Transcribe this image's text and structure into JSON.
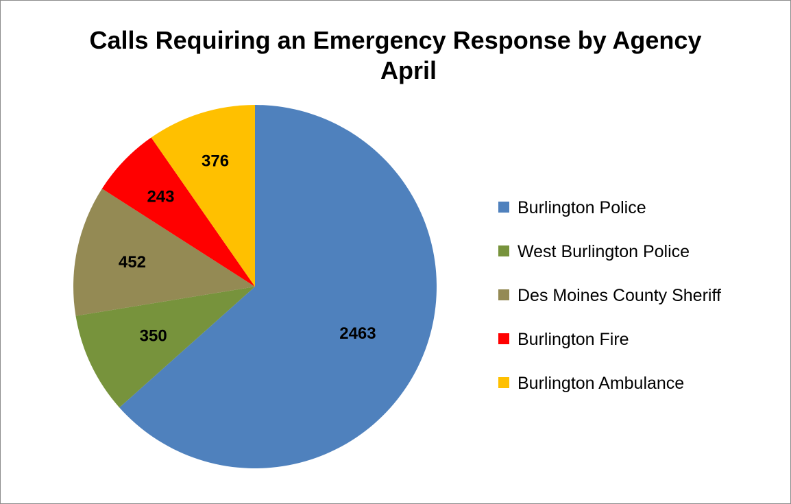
{
  "chart_data": {
    "type": "pie",
    "title_lines": [
      "Calls Requiring an Emergency Response by Agency",
      "April"
    ],
    "categories": [
      "Burlington Police",
      "West Burlington Police",
      "Des Moines County Sheriff",
      "Burlington Fire",
      "Burlington Ambulance"
    ],
    "values": [
      2463,
      350,
      452,
      243,
      376
    ],
    "colors": [
      "#4F81BD",
      "#77933C",
      "#948A54",
      "#FF0000",
      "#FFC000"
    ],
    "legend_position": "right",
    "data_labels": true,
    "start_angle_deg": 0,
    "direction": "clockwise"
  }
}
